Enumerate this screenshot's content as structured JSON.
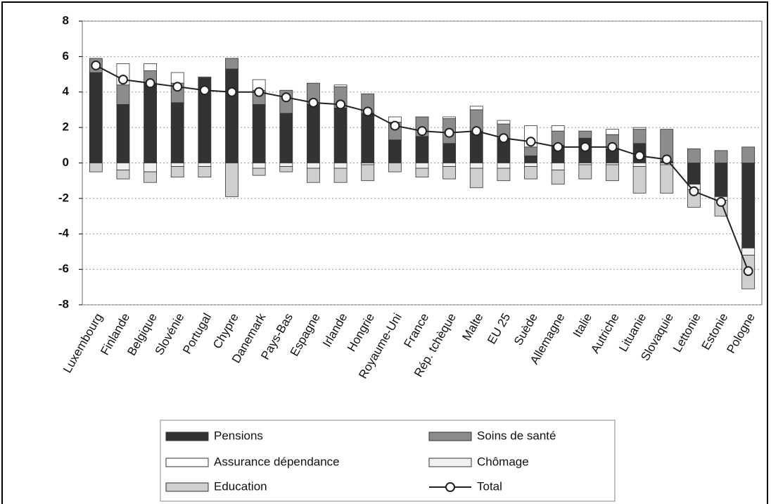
{
  "chart_data": {
    "type": "bar",
    "stacked": true,
    "categories": [
      "Luxembourg",
      "Finlande",
      "Belgique",
      "Slovénie",
      "Portugal",
      "Chypre",
      "Danemark",
      "Pays-Bas",
      "Espagne",
      "Irlande",
      "Hongrie",
      "Royaume-Uni",
      "France",
      "Rép. tchèque",
      "Malte",
      "EU 25",
      "Suède",
      "Allemagne",
      "Italie",
      "Autriche",
      "Lituanie",
      "Slovaquie",
      "Lettonie",
      "Estonie",
      "Pologne"
    ],
    "series": [
      {
        "name": "Pensions",
        "color": "#333333",
        "values": [
          5.1,
          3.3,
          4.5,
          3.4,
          4.8,
          5.3,
          3.3,
          2.8,
          3.3,
          3.1,
          2.8,
          1.3,
          1.5,
          1.1,
          1.8,
          1.4,
          0.4,
          1.0,
          1.4,
          0.8,
          1.1,
          0.1,
          -1.2,
          -1.9,
          -4.8
        ]
      },
      {
        "name": "Soins de santé",
        "color": "#8c8c8c",
        "values": [
          0.8,
          1.1,
          0.7,
          1.1,
          0.05,
          0.6,
          0.8,
          1.3,
          1.2,
          1.2,
          1.1,
          1.0,
          1.1,
          1.4,
          1.2,
          0.8,
          0.5,
          0.8,
          0.4,
          0.8,
          0.8,
          1.8,
          0.8,
          0.7,
          0.9
        ]
      },
      {
        "name": "Assurance dépendance",
        "color": "#ffffff",
        "values": [
          0,
          1.2,
          0.4,
          0.6,
          0,
          0,
          0.6,
          0,
          0,
          0.1,
          0,
          0.3,
          0,
          0.1,
          0.2,
          0.2,
          1.2,
          0.3,
          0,
          0.3,
          0.1,
          0,
          0,
          0,
          0
        ]
      },
      {
        "name": "Chômage",
        "color": "#f0f0f0",
        "values": [
          0,
          -0.4,
          -0.5,
          -0.2,
          -0.2,
          0,
          -0.3,
          -0.2,
          -0.3,
          -0.3,
          -0.1,
          0,
          -0.3,
          -0.2,
          -0.3,
          -0.3,
          -0.2,
          -0.4,
          -0.1,
          -0.1,
          -0.2,
          -0.1,
          -0.3,
          -0.2,
          -0.4
        ]
      },
      {
        "name": "Education",
        "color": "#cfcfcf",
        "values": [
          -0.5,
          -0.5,
          -0.6,
          -0.6,
          -0.6,
          -1.9,
          -0.4,
          -0.3,
          -0.8,
          -0.8,
          -0.9,
          -0.5,
          -0.5,
          -0.7,
          -1.1,
          -0.7,
          -0.7,
          -0.8,
          -0.8,
          -0.9,
          -1.5,
          -1.6,
          -1.0,
          -0.9,
          -1.9
        ]
      },
      {
        "name": "Total",
        "type": "line",
        "color": "#222222",
        "values": [
          5.5,
          4.7,
          4.5,
          4.3,
          4.1,
          4.0,
          4.0,
          3.7,
          3.4,
          3.3,
          2.9,
          2.1,
          1.8,
          1.7,
          1.8,
          1.4,
          1.2,
          0.9,
          0.9,
          0.9,
          0.4,
          0.2,
          -1.6,
          -2.2,
          -6.1
        ]
      }
    ],
    "ylim": [
      -8,
      8
    ],
    "yticks": [
      -8,
      -6,
      -4,
      -2,
      0,
      2,
      4,
      6,
      8
    ],
    "grid": true
  }
}
